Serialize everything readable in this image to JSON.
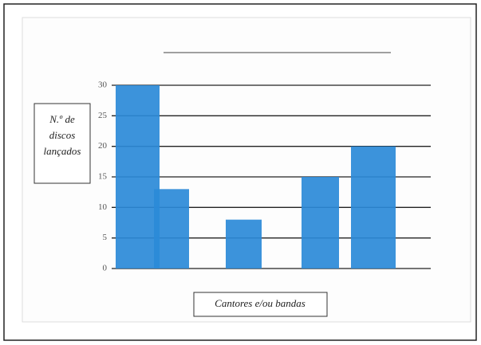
{
  "chart_data": {
    "type": "bar",
    "y_axis_label": "N.º de discos lançados",
    "x_axis_label": "Cantores e/ou bandas",
    "categories": [
      null,
      null,
      null,
      null,
      null
    ],
    "values": [
      30,
      13,
      8,
      15,
      20
    ],
    "color": "#2b8ad8",
    "ylim": [
      0,
      30
    ],
    "yticks": [
      0,
      5,
      10,
      15,
      20,
      25,
      30
    ],
    "grid": true
  }
}
